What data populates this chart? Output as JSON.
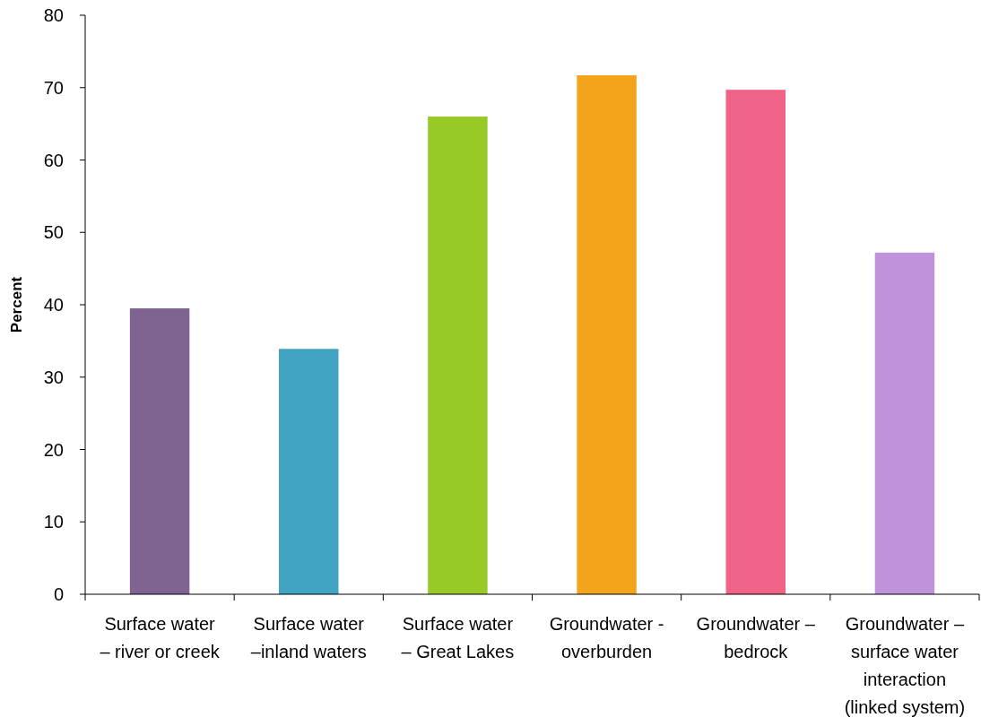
{
  "chart_data": {
    "type": "bar",
    "ylabel": "Percent",
    "categories": [
      "Surface water\n– river or creek",
      "Surface water\n–inland waters",
      "Surface water\n– Great Lakes",
      "Groundwater -\noverburden",
      "Groundwater –\nbedrock",
      "Groundwater –\nsurface water\ninteraction\n(linked system)"
    ],
    "values": [
      39.5,
      33.9,
      66.0,
      71.7,
      69.7,
      47.2
    ],
    "colors": [
      "#7f6390",
      "#41a4c3",
      "#97c927",
      "#f4a41b",
      "#f06386",
      "#bf92dc"
    ],
    "ylim": [
      0,
      80
    ],
    "yticks": [
      0,
      10,
      20,
      30,
      40,
      50,
      60,
      70,
      80
    ],
    "grid": false
  }
}
